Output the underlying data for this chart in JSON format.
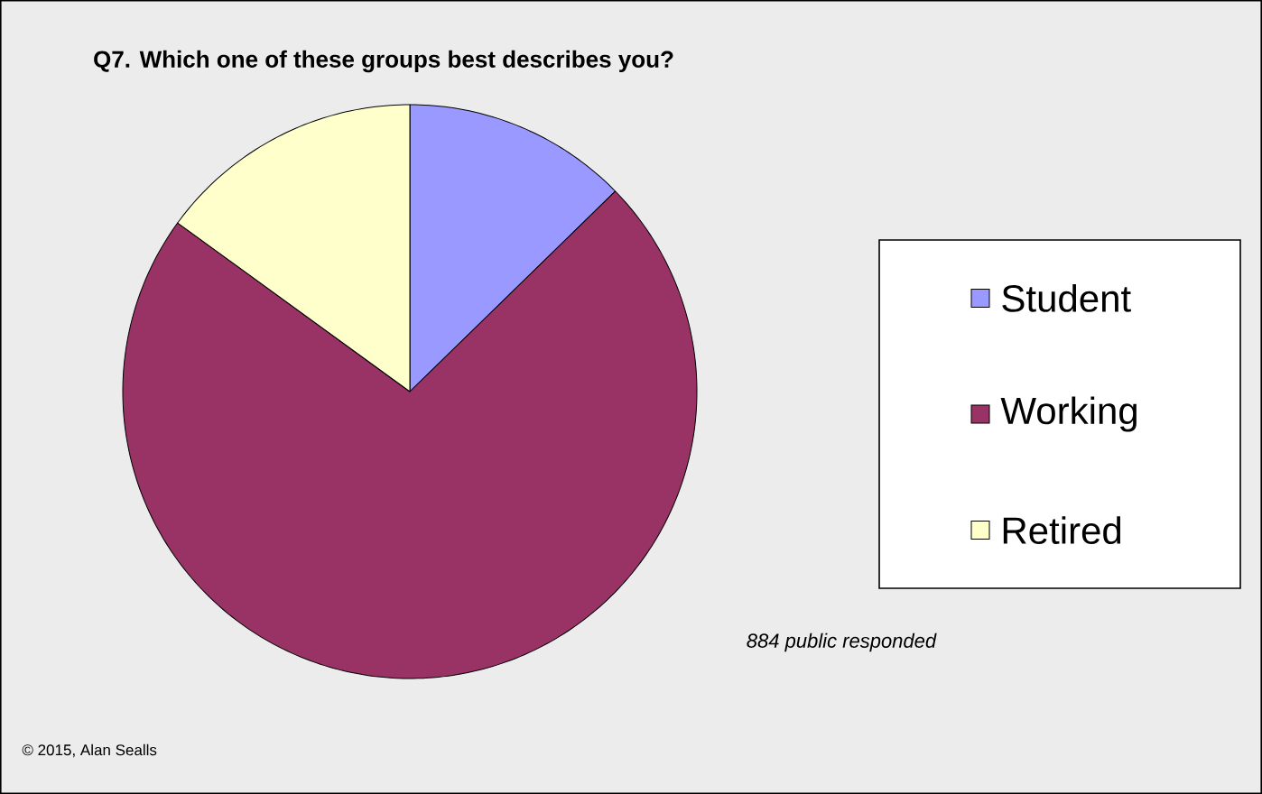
{
  "chart_data": {
    "type": "pie",
    "title": "Q7. Which one of these groups best describes you?",
    "categories": [
      "Student",
      "Working",
      "Retired"
    ],
    "values": [
      12.7,
      72.3,
      15.0
    ],
    "colors": [
      "#9999ff",
      "#993366",
      "#ffffcc"
    ],
    "legend": "right",
    "annotations": [
      "884 public responded",
      "© 2015, Alan Sealls"
    ]
  }
}
